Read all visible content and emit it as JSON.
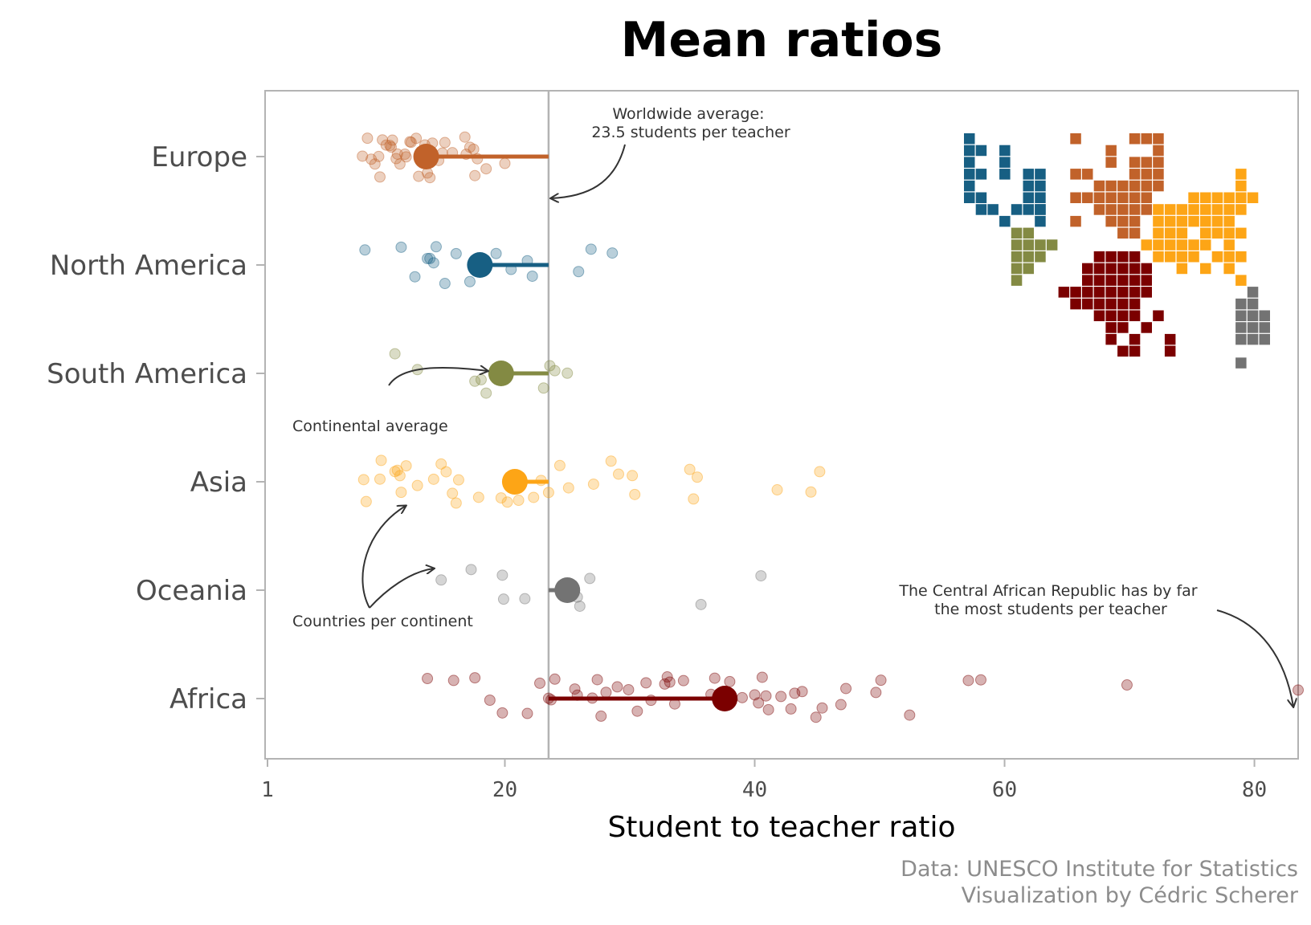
{
  "chart_data": {
    "type": "scatter",
    "title": "Mean ratios",
    "xlabel": "Student to teacher ratio",
    "ylabel": "",
    "xlim": [
      1,
      83.5
    ],
    "xticks": [
      1,
      20,
      40,
      60,
      80
    ],
    "grid": false,
    "worldwide_average": 23.5,
    "series": [
      {
        "name": "Europe",
        "color": "#c1622a",
        "mean": 13.7,
        "values": [
          8.6,
          9.3,
          10.2,
          10.8,
          11.4,
          12.1,
          12.9,
          13.8,
          14.7,
          15.8,
          17.2,
          18.5,
          20.0,
          9.0,
          9.9,
          10.5,
          11.6,
          12.4,
          13.3,
          14.3,
          15.2,
          16.8,
          17.6,
          10.0,
          11.0,
          12.0,
          13.1,
          14.2,
          15.0,
          17.8,
          9.6,
          10.9,
          12.5,
          14.0,
          16.9,
          13.6,
          11.3,
          17.5
        ]
      },
      {
        "name": "North America",
        "color": "#175f83",
        "mean": 18.0,
        "values": [
          8.8,
          12.8,
          13.8,
          14.0,
          14.5,
          15.2,
          16.1,
          17.2,
          18.5,
          19.3,
          20.5,
          21.8,
          22.2,
          25.9,
          26.9,
          28.6,
          14.3,
          11.7
        ]
      },
      {
        "name": "South America",
        "color": "#838a43",
        "mean": 19.7,
        "values": [
          11.2,
          13.0,
          17.6,
          18.1,
          18.5,
          23.6,
          24.0,
          25.0,
          19.2,
          23.1
        ]
      },
      {
        "name": "Asia",
        "color": "#fda516",
        "mean": 20.8,
        "values": [
          8.7,
          10.0,
          11.2,
          11.4,
          11.7,
          12.1,
          15.3,
          15.8,
          17.9,
          20.2,
          21.1,
          22.3,
          23.5,
          25.1,
          27.1,
          28.5,
          29.1,
          30.2,
          34.8,
          35.4,
          41.8,
          44.5,
          45.2,
          8.9,
          10.1,
          11.6,
          13.0,
          14.3,
          14.9,
          16.1,
          16.3,
          19.7,
          20.8,
          22.9,
          24.4,
          30.4,
          35.1
        ]
      },
      {
        "name": "Oceania",
        "color": "#737373",
        "mean": 25.0,
        "values": [
          14.9,
          17.3,
          19.8,
          19.9,
          21.6,
          25.8,
          26.0,
          26.8,
          35.7,
          40.5
        ]
      },
      {
        "name": "Africa",
        "color": "#7b0000",
        "mean": 37.6,
        "values": [
          13.8,
          15.9,
          17.6,
          18.8,
          19.8,
          21.8,
          22.8,
          23.5,
          24.0,
          25.6,
          27.0,
          27.4,
          28.1,
          29.0,
          29.9,
          30.6,
          31.3,
          32.8,
          33.0,
          33.6,
          34.3,
          36.5,
          38.0,
          39.0,
          40.0,
          40.6,
          41.1,
          42.1,
          42.9,
          43.8,
          44.9,
          45.4,
          46.9,
          47.3,
          49.7,
          50.1,
          52.4,
          57.1,
          58.1,
          69.8,
          83.5,
          36.8,
          40.3,
          40.9,
          43.2,
          31.7,
          27.7,
          23.7,
          25.8,
          33.2
        ]
      }
    ],
    "annotations": [
      {
        "id": "worldwide",
        "text": [
          "Worldwide average:",
          "23.5 students per teacher"
        ]
      },
      {
        "id": "continental",
        "text": [
          "Continental average"
        ]
      },
      {
        "id": "countries",
        "text": [
          "Countries per continent"
        ]
      },
      {
        "id": "car",
        "text": [
          "The Central African Republic has by far",
          "the most students per teacher"
        ]
      }
    ]
  },
  "caption": [
    "Data: UNESCO Institute for Statistics",
    "Visualization by Cédric Scherer"
  ]
}
